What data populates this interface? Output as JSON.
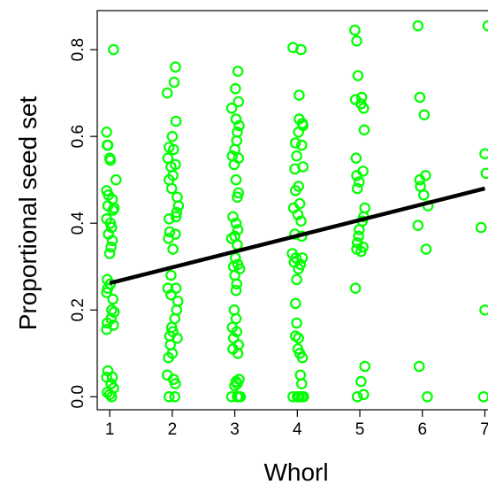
{
  "chart_data": {
    "type": "scatter",
    "title": "",
    "xlabel": "Whorl",
    "ylabel": "Proportional seed set",
    "xlim": [
      0.8,
      7.05
    ],
    "ylim": [
      -0.03,
      0.89
    ],
    "x_ticks": [
      1,
      2,
      3,
      4,
      5,
      6,
      7
    ],
    "x_tick_labels": [
      "1",
      "2",
      "3",
      "4",
      "5",
      "6",
      "7"
    ],
    "y_ticks": [
      0.0,
      0.2,
      0.4,
      0.6,
      0.8
    ],
    "y_tick_labels": [
      "0.0",
      "0.2",
      "0.4",
      "0.6",
      "0.8"
    ],
    "point_color": "#00ff00",
    "line_color": "#000000",
    "grid": false,
    "legend": "none",
    "fit_line": {
      "x": [
        1,
        7
      ],
      "y": [
        0.262,
        0.48
      ]
    },
    "points": [
      [
        1.06,
        0.8
      ],
      [
        0.95,
        0.61
      ],
      [
        0.97,
        0.58
      ],
      [
        0.96,
        0.58
      ],
      [
        1.0,
        0.55
      ],
      [
        1.01,
        0.545
      ],
      [
        1.1,
        0.5
      ],
      [
        0.95,
        0.475
      ],
      [
        0.98,
        0.465
      ],
      [
        1.04,
        0.455
      ],
      [
        0.97,
        0.44
      ],
      [
        1.07,
        0.435
      ],
      [
        1.05,
        0.43
      ],
      [
        0.95,
        0.41
      ],
      [
        1.01,
        0.4
      ],
      [
        1.03,
        0.39
      ],
      [
        0.98,
        0.375
      ],
      [
        1.04,
        0.36
      ],
      [
        1.02,
        0.345
      ],
      [
        1.0,
        0.33
      ],
      [
        0.96,
        0.27
      ],
      [
        1.01,
        0.26
      ],
      [
        0.97,
        0.25
      ],
      [
        0.95,
        0.24
      ],
      [
        1.05,
        0.225
      ],
      [
        1.03,
        0.2
      ],
      [
        1.07,
        0.195
      ],
      [
        1.02,
        0.18
      ],
      [
        0.96,
        0.17
      ],
      [
        1.06,
        0.165
      ],
      [
        0.95,
        0.155
      ],
      [
        0.97,
        0.06
      ],
      [
        1.04,
        0.045
      ],
      [
        0.95,
        0.045
      ],
      [
        1.02,
        0.03
      ],
      [
        1.06,
        0.02
      ],
      [
        0.96,
        0.01
      ],
      [
        1.0,
        0.005
      ],
      [
        1.03,
        0.0
      ],
      [
        2.05,
        0.76
      ],
      [
        2.03,
        0.725
      ],
      [
        1.92,
        0.7
      ],
      [
        2.06,
        0.635
      ],
      [
        2.0,
        0.6
      ],
      [
        1.95,
        0.575
      ],
      [
        2.02,
        0.57
      ],
      [
        1.93,
        0.55
      ],
      [
        2.05,
        0.535
      ],
      [
        1.98,
        0.53
      ],
      [
        2.01,
        0.51
      ],
      [
        1.95,
        0.5
      ],
      [
        1.99,
        0.48
      ],
      [
        2.08,
        0.46
      ],
      [
        2.1,
        0.44
      ],
      [
        2.07,
        0.425
      ],
      [
        2.06,
        0.415
      ],
      [
        1.95,
        0.41
      ],
      [
        1.96,
        0.38
      ],
      [
        2.05,
        0.375
      ],
      [
        1.94,
        0.365
      ],
      [
        2.01,
        0.34
      ],
      [
        1.98,
        0.28
      ],
      [
        2.06,
        0.25
      ],
      [
        1.93,
        0.25
      ],
      [
        1.98,
        0.235
      ],
      [
        2.09,
        0.22
      ],
      [
        2.07,
        0.2
      ],
      [
        2.04,
        0.18
      ],
      [
        1.99,
        0.16
      ],
      [
        2.01,
        0.15
      ],
      [
        1.96,
        0.14
      ],
      [
        2.08,
        0.135
      ],
      [
        1.97,
        0.12
      ],
      [
        2.0,
        0.1
      ],
      [
        1.94,
        0.09
      ],
      [
        1.92,
        0.05
      ],
      [
        2.02,
        0.04
      ],
      [
        2.05,
        0.03
      ],
      [
        1.95,
        0.0
      ],
      [
        2.04,
        0.0
      ],
      [
        3.05,
        0.75
      ],
      [
        3.01,
        0.71
      ],
      [
        3.06,
        0.68
      ],
      [
        2.95,
        0.665
      ],
      [
        3.02,
        0.64
      ],
      [
        3.07,
        0.625
      ],
      [
        3.04,
        0.61
      ],
      [
        3.03,
        0.59
      ],
      [
        3.0,
        0.57
      ],
      [
        2.96,
        0.555
      ],
      [
        3.06,
        0.55
      ],
      [
        2.99,
        0.535
      ],
      [
        3.02,
        0.5
      ],
      [
        3.06,
        0.47
      ],
      [
        3.04,
        0.46
      ],
      [
        2.97,
        0.415
      ],
      [
        3.02,
        0.4
      ],
      [
        3.05,
        0.385
      ],
      [
        3.0,
        0.37
      ],
      [
        2.95,
        0.365
      ],
      [
        3.04,
        0.35
      ],
      [
        3.01,
        0.32
      ],
      [
        3.05,
        0.305
      ],
      [
        2.98,
        0.3
      ],
      [
        3.08,
        0.295
      ],
      [
        3.0,
        0.28
      ],
      [
        3.03,
        0.26
      ],
      [
        3.02,
        0.245
      ],
      [
        2.99,
        0.2
      ],
      [
        3.02,
        0.18
      ],
      [
        2.96,
        0.16
      ],
      [
        3.03,
        0.15
      ],
      [
        2.98,
        0.135
      ],
      [
        3.06,
        0.12
      ],
      [
        2.97,
        0.11
      ],
      [
        3.05,
        0.1
      ],
      [
        3.07,
        0.04
      ],
      [
        3.02,
        0.035
      ],
      [
        3.04,
        0.03
      ],
      [
        3.0,
        0.025
      ],
      [
        2.95,
        0.0
      ],
      [
        3.06,
        0.0
      ],
      [
        3.04,
        0.0
      ],
      [
        3.09,
        0.0
      ],
      [
        3.93,
        0.805
      ],
      [
        4.06,
        0.8
      ],
      [
        4.03,
        0.695
      ],
      [
        4.08,
        0.63
      ],
      [
        4.03,
        0.64
      ],
      [
        4.09,
        0.625
      ],
      [
        4.02,
        0.61
      ],
      [
        3.97,
        0.585
      ],
      [
        4.07,
        0.58
      ],
      [
        3.99,
        0.555
      ],
      [
        3.96,
        0.525
      ],
      [
        4.09,
        0.53
      ],
      [
        4.02,
        0.485
      ],
      [
        3.97,
        0.475
      ],
      [
        4.04,
        0.445
      ],
      [
        3.94,
        0.435
      ],
      [
        4.01,
        0.42
      ],
      [
        4.06,
        0.405
      ],
      [
        3.96,
        0.375
      ],
      [
        4.07,
        0.37
      ],
      [
        3.92,
        0.33
      ],
      [
        3.98,
        0.32
      ],
      [
        4.08,
        0.32
      ],
      [
        3.95,
        0.31
      ],
      [
        4.05,
        0.305
      ],
      [
        4.02,
        0.295
      ],
      [
        3.99,
        0.27
      ],
      [
        3.97,
        0.215
      ],
      [
        3.99,
        0.17
      ],
      [
        3.97,
        0.14
      ],
      [
        4.02,
        0.135
      ],
      [
        4.01,
        0.11
      ],
      [
        4.04,
        0.1
      ],
      [
        4.08,
        0.09
      ],
      [
        4.05,
        0.05
      ],
      [
        4.07,
        0.03
      ],
      [
        3.93,
        0.0
      ],
      [
        4.0,
        0.0
      ],
      [
        4.03,
        0.0
      ],
      [
        4.07,
        0.0
      ],
      [
        4.1,
        0.0
      ],
      [
        4.92,
        0.845
      ],
      [
        4.95,
        0.82
      ],
      [
        4.97,
        0.74
      ],
      [
        5.03,
        0.69
      ],
      [
        4.93,
        0.685
      ],
      [
        5.02,
        0.675
      ],
      [
        5.06,
        0.665
      ],
      [
        5.07,
        0.615
      ],
      [
        4.94,
        0.55
      ],
      [
        5.05,
        0.52
      ],
      [
        4.95,
        0.51
      ],
      [
        4.99,
        0.495
      ],
      [
        4.96,
        0.48
      ],
      [
        5.08,
        0.435
      ],
      [
        5.06,
        0.415
      ],
      [
        5.04,
        0.405
      ],
      [
        4.99,
        0.385
      ],
      [
        4.98,
        0.37
      ],
      [
        4.96,
        0.355
      ],
      [
        5.05,
        0.345
      ],
      [
        4.95,
        0.34
      ],
      [
        5.02,
        0.335
      ],
      [
        4.93,
        0.25
      ],
      [
        5.08,
        0.07
      ],
      [
        5.02,
        0.035
      ],
      [
        5.06,
        0.005
      ],
      [
        4.96,
        0.0
      ],
      [
        5.93,
        0.855
      ],
      [
        5.96,
        0.69
      ],
      [
        6.03,
        0.65
      ],
      [
        5.96,
        0.5
      ],
      [
        6.05,
        0.51
      ],
      [
        5.97,
        0.485
      ],
      [
        6.02,
        0.465
      ],
      [
        6.09,
        0.44
      ],
      [
        5.93,
        0.395
      ],
      [
        6.06,
        0.34
      ],
      [
        5.95,
        0.07
      ],
      [
        6.08,
        0.0
      ],
      [
        7.05,
        0.855
      ],
      [
        7.0,
        0.56
      ],
      [
        7.02,
        0.515
      ],
      [
        6.94,
        0.39
      ],
      [
        7.0,
        0.2
      ],
      [
        6.98,
        0.0
      ]
    ]
  }
}
